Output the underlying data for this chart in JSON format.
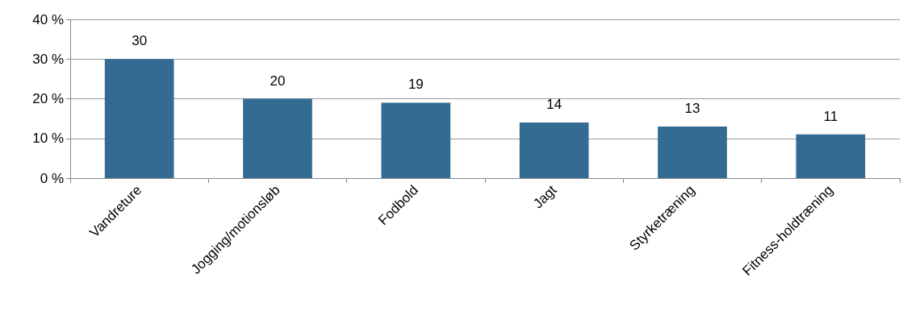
{
  "chart_data": {
    "type": "bar",
    "categories": [
      "Vandreture",
      "Jogging/motionsløb",
      "Fodbold",
      "Jagt",
      "Styrketræning",
      "Fitness-holdtræning"
    ],
    "values": [
      30,
      20,
      19,
      14,
      13,
      11
    ],
    "color": "#336b93",
    "ylim": [
      0,
      40
    ],
    "yticks": [
      {
        "value": 0,
        "label": "0 %"
      },
      {
        "value": 10,
        "label": "10 %"
      },
      {
        "value": 20,
        "label": "20 %"
      },
      {
        "value": 30,
        "label": "30 %"
      },
      {
        "value": 40,
        "label": "40 %"
      }
    ],
    "grid": "y",
    "data_labels": true
  }
}
